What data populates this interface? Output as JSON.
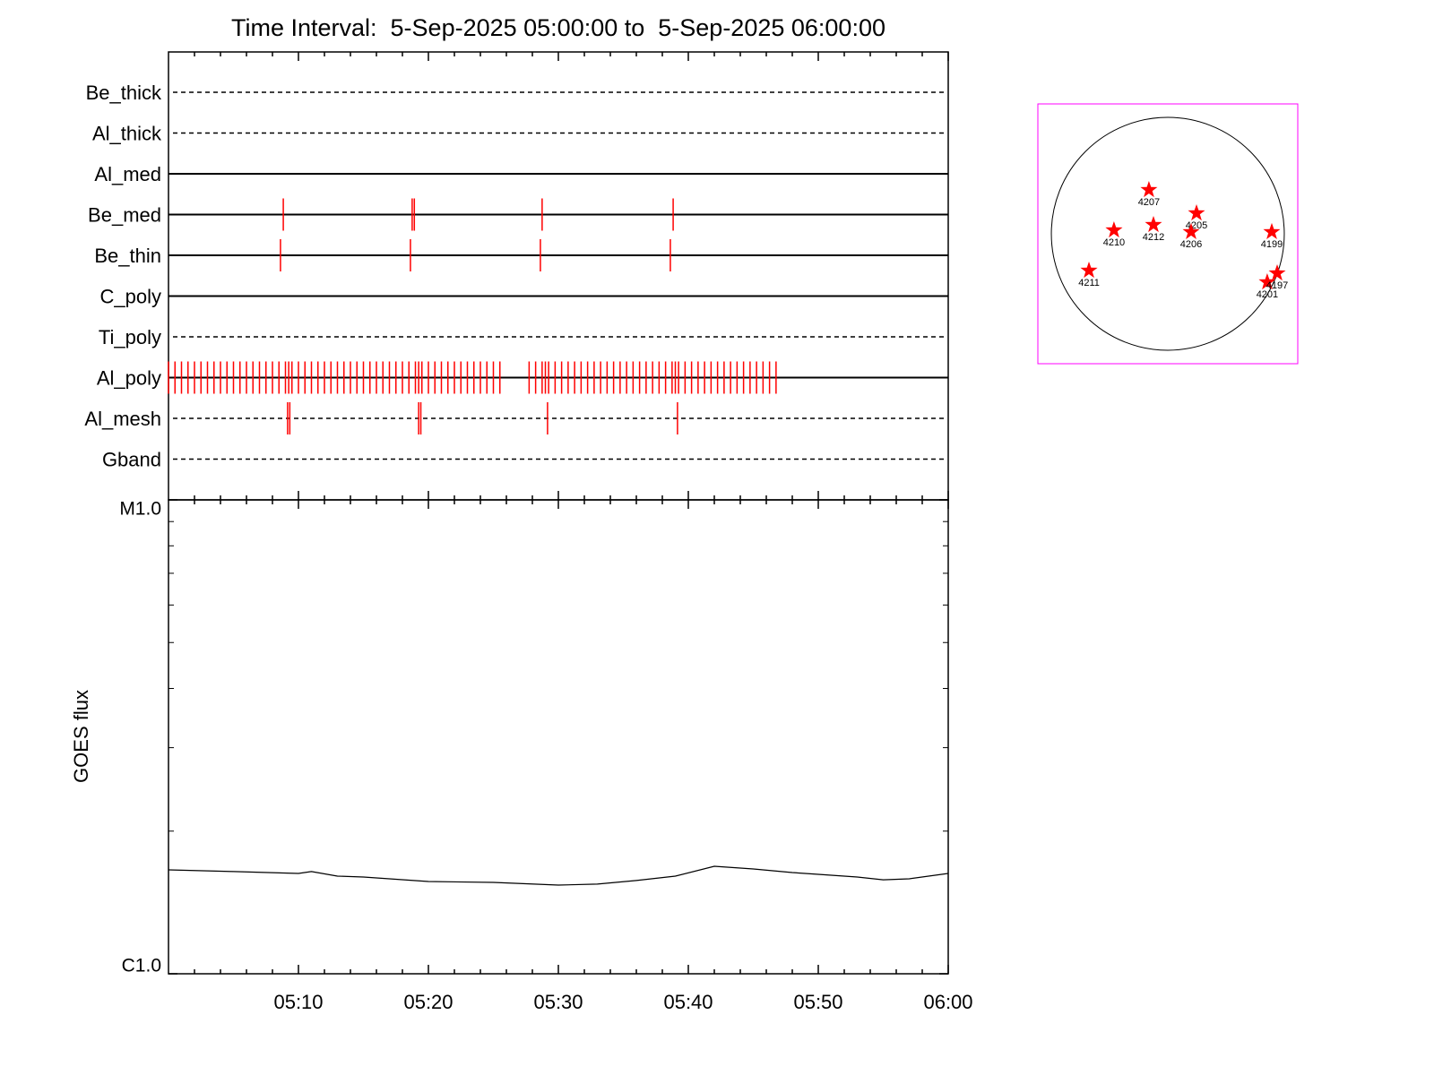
{
  "chart_data": [
    {
      "type": "timeline",
      "title": "Time Interval:  5-Sep-2025 05:00:00 to  5-Sep-2025 06:00:00",
      "xlim": [
        "05:00",
        "06:00"
      ],
      "event_color": "#ff0000",
      "rows": [
        {
          "name": "Be_thick",
          "line": "dashed",
          "events": []
        },
        {
          "name": "Al_thick",
          "line": "dashed",
          "events": []
        },
        {
          "name": "Al_med",
          "line": "solid",
          "events": []
        },
        {
          "name": "Be_med",
          "line": "solid",
          "events": [
            "05:08:50",
            "05:18:45",
            "05:18:55",
            "05:28:45",
            "05:38:50"
          ]
        },
        {
          "name": "Be_thin",
          "line": "solid",
          "events": [
            "05:08:37",
            "05:18:37",
            "05:28:37",
            "05:38:37"
          ]
        },
        {
          "name": "C_poly",
          "line": "solid",
          "events": []
        },
        {
          "name": "Ti_poly",
          "line": "dashed",
          "events": []
        },
        {
          "name": "Al_poly",
          "line": "solid",
          "events": [
            "05:00:00",
            "05:00:30",
            "05:01:00",
            "05:01:30",
            "05:02:00",
            "05:02:30",
            "05:03:00",
            "05:03:30",
            "05:04:00",
            "05:04:30",
            "05:05:00",
            "05:05:30",
            "05:06:00",
            "05:06:30",
            "05:07:00",
            "05:07:30",
            "05:08:00",
            "05:08:30",
            "05:09:00",
            "05:09:15",
            "05:09:30",
            "05:10:00",
            "05:10:30",
            "05:11:00",
            "05:11:30",
            "05:12:00",
            "05:12:30",
            "05:13:00",
            "05:13:30",
            "05:14:00",
            "05:14:30",
            "05:15:00",
            "05:15:30",
            "05:16:00",
            "05:16:30",
            "05:17:00",
            "05:17:30",
            "05:18:00",
            "05:18:30",
            "05:19:00",
            "05:19:15",
            "05:19:30",
            "05:20:00",
            "05:20:30",
            "05:21:00",
            "05:21:30",
            "05:22:00",
            "05:22:30",
            "05:23:00",
            "05:23:30",
            "05:24:00",
            "05:24:30",
            "05:25:00",
            "05:25:30",
            "05:27:45",
            "05:28:15",
            "05:28:45",
            "05:29:00",
            "05:29:15",
            "05:29:45",
            "05:30:15",
            "05:30:45",
            "05:31:15",
            "05:31:45",
            "05:32:15",
            "05:32:45",
            "05:33:15",
            "05:33:45",
            "05:34:15",
            "05:34:45",
            "05:35:15",
            "05:35:45",
            "05:36:15",
            "05:36:45",
            "05:37:15",
            "05:37:45",
            "05:38:15",
            "05:38:45",
            "05:39:00",
            "05:39:15",
            "05:39:45",
            "05:40:15",
            "05:40:45",
            "05:41:15",
            "05:41:45",
            "05:42:15",
            "05:42:45",
            "05:43:15",
            "05:43:45",
            "05:44:15",
            "05:44:45",
            "05:45:15",
            "05:45:45",
            "05:46:15",
            "05:46:45"
          ]
        },
        {
          "name": "Al_mesh",
          "line": "dashed",
          "events": [
            "05:09:10",
            "05:09:20",
            "05:19:15",
            "05:19:25",
            "05:29:10",
            "05:39:10"
          ]
        },
        {
          "name": "Gband",
          "line": "dashed",
          "events": []
        }
      ]
    },
    {
      "type": "line",
      "ylabel": "GOES flux",
      "log": true,
      "color": "#000000",
      "xlim": [
        "05:00",
        "06:00"
      ],
      "xticks": [
        "05:10",
        "05:20",
        "05:30",
        "05:40",
        "05:50",
        "06:00"
      ],
      "xminorticks": [
        "05:02",
        "05:04",
        "05:06",
        "05:08",
        "05:12",
        "05:14",
        "05:16",
        "05:18",
        "05:22",
        "05:24",
        "05:26",
        "05:28",
        "05:32",
        "05:34",
        "05:36",
        "05:38",
        "05:42",
        "05:44",
        "05:46",
        "05:48",
        "05:52",
        "05:54",
        "05:56",
        "05:58"
      ],
      "ylim": [
        1e-06,
        1e-05
      ],
      "yticks": [
        {
          "value": 1e-06,
          "label": "C1.0"
        },
        {
          "value": 1e-05,
          "label": "M1.0"
        }
      ],
      "yminorticks": [
        2e-06,
        3e-06,
        4e-06,
        5e-06,
        6e-06,
        7e-06,
        8e-06,
        9e-06
      ],
      "x": [
        "05:00",
        "05:05",
        "05:10",
        "05:11",
        "05:13",
        "05:15",
        "05:20",
        "05:25",
        "05:30",
        "05:33",
        "05:36",
        "05:39",
        "05:42",
        "05:45",
        "05:48",
        "05:50",
        "05:53",
        "05:55",
        "05:57",
        "06:00"
      ],
      "values": [
        1.657e-06,
        1.643e-06,
        1.628e-06,
        1.643e-06,
        1.607e-06,
        1.6e-06,
        1.566e-06,
        1.559e-06,
        1.539e-06,
        1.546e-06,
        1.573e-06,
        1.607e-06,
        1.686e-06,
        1.664e-06,
        1.635e-06,
        1.621e-06,
        1.6e-06,
        1.579e-06,
        1.586e-06,
        1.628e-06
      ]
    },
    {
      "type": "disk",
      "radius": 950,
      "xlim": [
        -1060,
        1060
      ],
      "ylim": [
        -1060,
        1060
      ],
      "frame_color": "#ff00ff",
      "marker_color": "#ff0000",
      "regions": [
        {
          "name": "4207",
          "x": -154,
          "y": 358
        },
        {
          "name": "4205",
          "x": 234,
          "y": 168
        },
        {
          "name": "4212",
          "x": -117,
          "y": 73
        },
        {
          "name": "4210",
          "x": -439,
          "y": 29
        },
        {
          "name": "4206",
          "x": 190,
          "y": 15
        },
        {
          "name": "4199",
          "x": 848,
          "y": 15
        },
        {
          "name": "4211",
          "x": -643,
          "y": -300
        },
        {
          "name": "4201",
          "x": 811,
          "y": -395
        },
        {
          "name": "4197",
          "x": 892,
          "y": -322
        }
      ]
    }
  ]
}
